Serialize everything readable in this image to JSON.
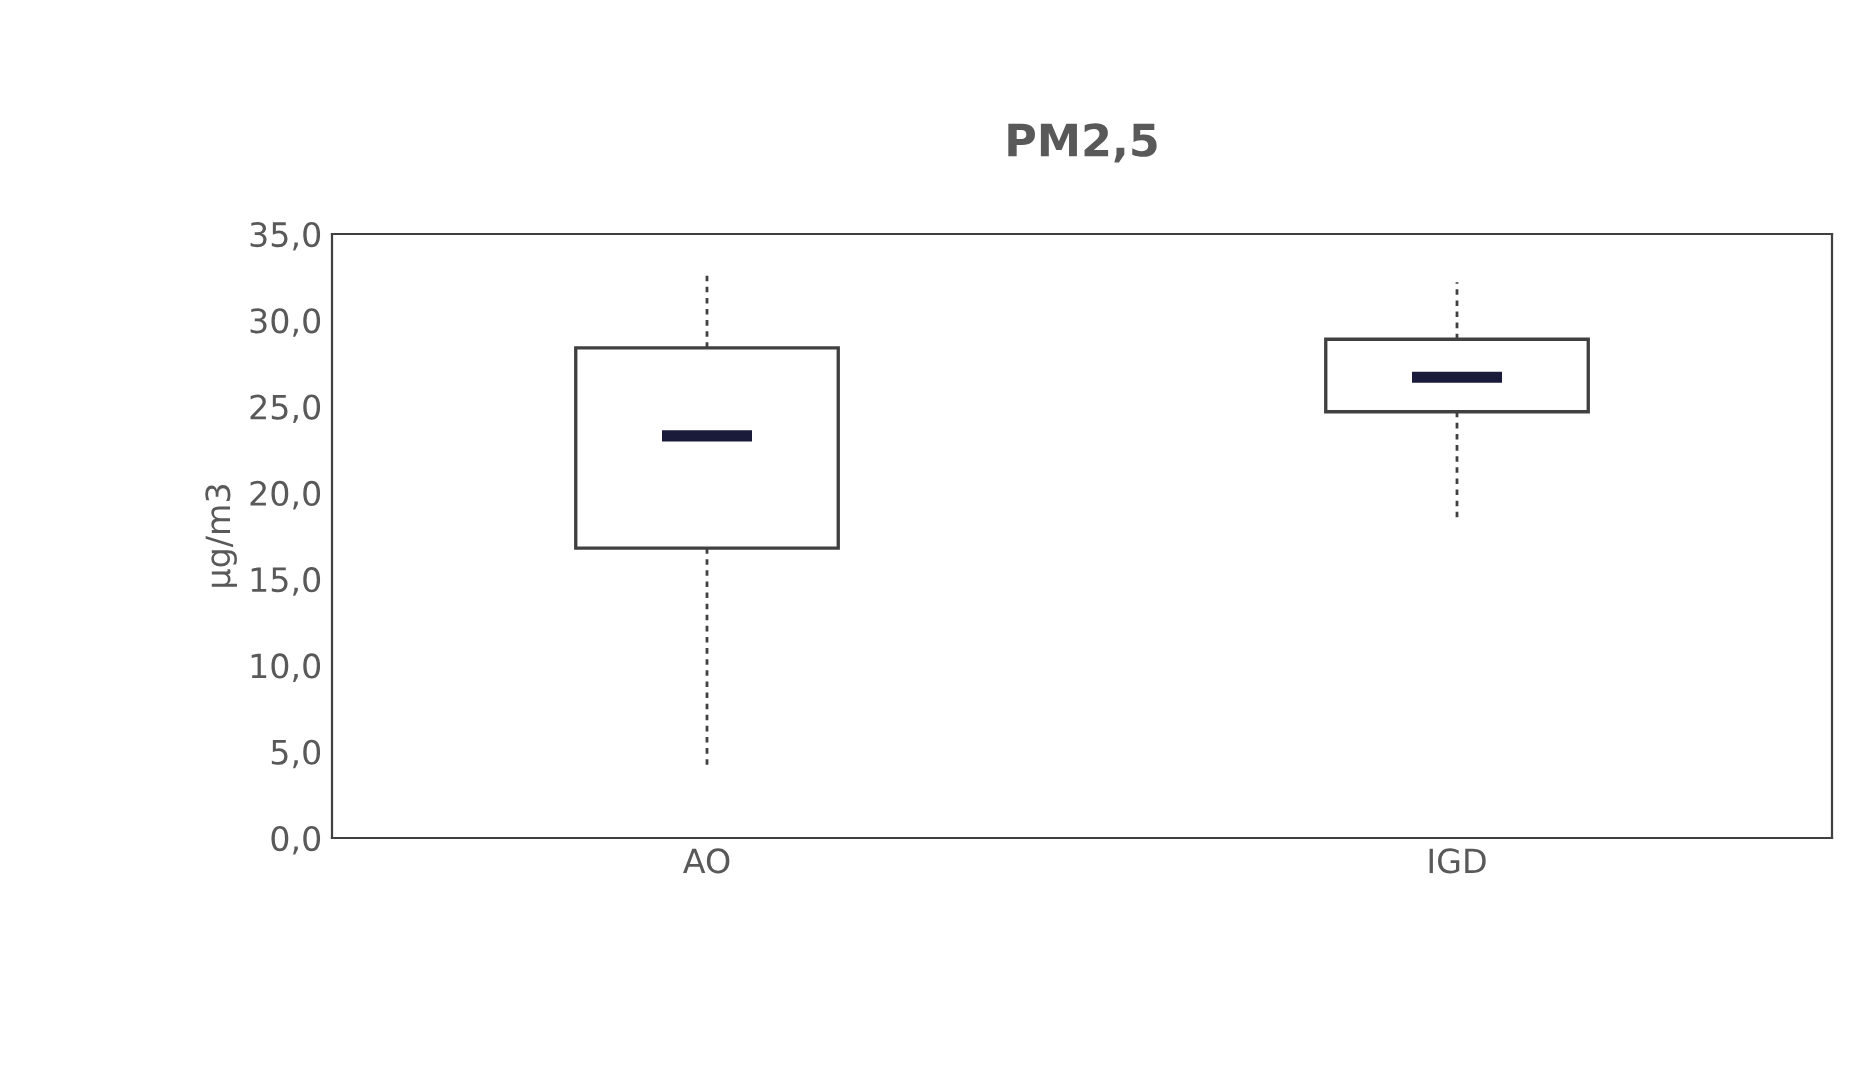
{
  "chart_data": {
    "type": "box",
    "title": "PM2,5",
    "ylabel": "µg/m3",
    "categories": [
      "AO",
      "IGD"
    ],
    "boxes": [
      {
        "low": 4.2,
        "q1": 16.8,
        "median": 23.3,
        "q3": 28.4,
        "high": 32.6
      },
      {
        "low": 18.3,
        "q1": 24.7,
        "median": 26.7,
        "q3": 28.9,
        "high": 32.2
      }
    ],
    "ylim": [
      0,
      35
    ],
    "yticks": [
      {
        "value": 0,
        "label": "0,0"
      },
      {
        "value": 5,
        "label": "5,0"
      },
      {
        "value": 10,
        "label": "10,0"
      },
      {
        "value": 15,
        "label": "15,0"
      },
      {
        "value": 20,
        "label": "20,0"
      },
      {
        "value": 25,
        "label": "25,0"
      },
      {
        "value": 30,
        "label": "30,0"
      },
      {
        "value": 35,
        "label": "35,0"
      }
    ],
    "grid": false,
    "legend": false
  }
}
